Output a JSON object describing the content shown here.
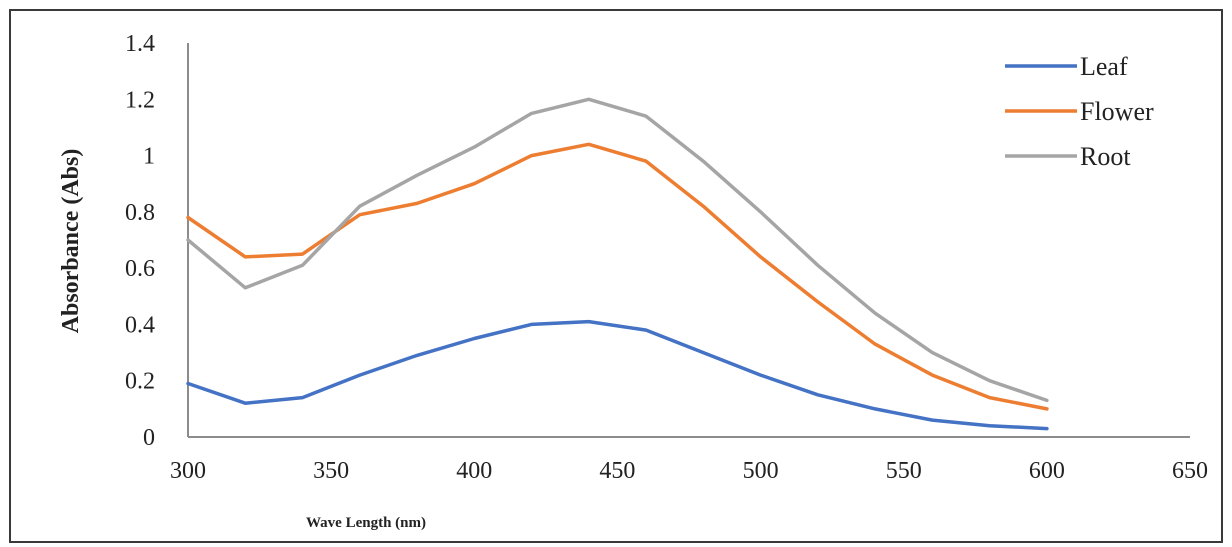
{
  "chart_data": {
    "type": "line",
    "title": "",
    "xlabel": "Wave Length (nm)",
    "ylabel": "Absorbance (Abs)",
    "xlim": [
      300,
      650
    ],
    "ylim": [
      0,
      1.4
    ],
    "x_ticks": [
      "300",
      "350",
      "400",
      "450",
      "500",
      "550",
      "600",
      "650"
    ],
    "y_ticks": [
      "0",
      "0.2",
      "0.4",
      "0.6",
      "0.8",
      "1",
      "1.2",
      "1.4"
    ],
    "legend_position": "top-right",
    "grid": false,
    "x": [
      300,
      320,
      340,
      360,
      380,
      400,
      420,
      440,
      460,
      480,
      500,
      520,
      540,
      560,
      580,
      600
    ],
    "series": [
      {
        "name": "Leaf",
        "color": "#4472c4",
        "values": [
          0.19,
          0.12,
          0.14,
          0.22,
          0.29,
          0.35,
          0.4,
          0.41,
          0.38,
          0.3,
          0.22,
          0.15,
          0.1,
          0.06,
          0.04,
          0.03
        ]
      },
      {
        "name": "Flower",
        "color": "#ed7d31",
        "values": [
          0.78,
          0.64,
          0.65,
          0.79,
          0.83,
          0.9,
          1.0,
          1.04,
          0.98,
          0.82,
          0.64,
          0.48,
          0.33,
          0.22,
          0.14,
          0.1
        ]
      },
      {
        "name": "Root",
        "color": "#a5a5a5",
        "values": [
          0.7,
          0.53,
          0.61,
          0.82,
          0.93,
          1.03,
          1.15,
          1.2,
          1.14,
          0.98,
          0.8,
          0.61,
          0.44,
          0.3,
          0.2,
          0.13
        ]
      }
    ]
  }
}
